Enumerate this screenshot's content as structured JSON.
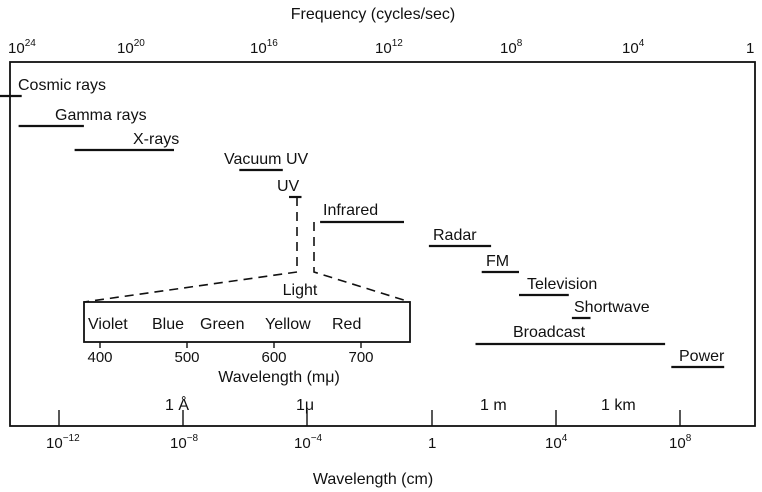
{
  "colors": {
    "ink": "#111111",
    "background": "#ffffff"
  },
  "top_axis": {
    "title": "Frequency (cycles/sec)",
    "ticks": [
      {
        "base": "10",
        "exp": "24"
      },
      {
        "base": "10",
        "exp": "20"
      },
      {
        "base": "10",
        "exp": "16"
      },
      {
        "base": "10",
        "exp": "12"
      },
      {
        "base": "10",
        "exp": "8"
      },
      {
        "base": "10",
        "exp": "4"
      },
      {
        "base": "1",
        "exp": ""
      }
    ]
  },
  "bands": [
    {
      "label": "Cosmic rays",
      "range_log_cm": [
        -14.5,
        -13.2
      ]
    },
    {
      "label": "Gamma rays",
      "range_log_cm": [
        -13.3,
        -11.2
      ]
    },
    {
      "label": "X-rays",
      "range_log_cm": [
        -11.5,
        -8.3
      ]
    },
    {
      "label": "Vacuum UV",
      "range_log_cm": [
        -6.2,
        -4.8
      ]
    },
    {
      "label": "UV",
      "range_log_cm": [
        -4.6,
        -4.2
      ]
    },
    {
      "label": "Infrared",
      "range_log_cm": [
        -3.6,
        -0.9
      ]
    },
    {
      "label": "Radar",
      "range_log_cm": [
        -0.1,
        1.9
      ]
    },
    {
      "label": "FM",
      "range_log_cm": [
        1.6,
        2.8
      ]
    },
    {
      "label": "Television",
      "range_log_cm": [
        2.8,
        4.4
      ]
    },
    {
      "label": "Shortwave",
      "range_log_cm": [
        4.5,
        5.1
      ]
    },
    {
      "label": "Broadcast",
      "range_log_cm": [
        1.4,
        7.5
      ]
    },
    {
      "label": "Power",
      "range_log_cm": [
        7.7,
        9.4
      ]
    }
  ],
  "light": {
    "title": "Light",
    "colors": [
      "Violet",
      "Blue",
      "Green",
      "Yellow",
      "Red"
    ],
    "scale_ticks": [
      "400",
      "500",
      "600",
      "700"
    ],
    "scale_label": "Wavelength (mμ)"
  },
  "reference_marks": [
    {
      "label": "1 Å",
      "log_cm": -8
    },
    {
      "label": "1μ",
      "log_cm": -4
    },
    {
      "label": "1 m",
      "log_cm": 2
    },
    {
      "label": "1 km",
      "log_cm": 5
    }
  ],
  "bottom_axis": {
    "title": "Wavelength (cm)",
    "ticks": [
      {
        "base": "10",
        "exp": "−12"
      },
      {
        "base": "10",
        "exp": "−8"
      },
      {
        "base": "10",
        "exp": "−4"
      },
      {
        "base": "1",
        "exp": ""
      },
      {
        "base": "10",
        "exp": "4"
      },
      {
        "base": "10",
        "exp": "8"
      }
    ]
  }
}
